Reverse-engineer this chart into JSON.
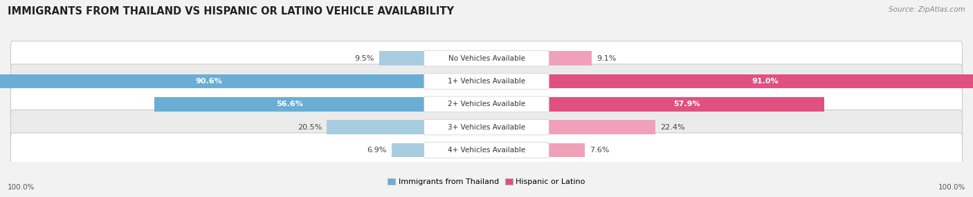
{
  "title": "IMMIGRANTS FROM THAILAND VS HISPANIC OR LATINO VEHICLE AVAILABILITY",
  "source": "Source: ZipAtlas.com",
  "categories": [
    "No Vehicles Available",
    "1+ Vehicles Available",
    "2+ Vehicles Available",
    "3+ Vehicles Available",
    "4+ Vehicles Available"
  ],
  "thailand_values": [
    9.5,
    90.6,
    56.6,
    20.5,
    6.9
  ],
  "hispanic_values": [
    9.1,
    91.0,
    57.9,
    22.4,
    7.6
  ],
  "max_value": 100.0,
  "thailand_color_large": "#6aaed6",
  "thailand_color_small": "#a8cce0",
  "hispanic_color_large": "#e05080",
  "hispanic_color_small": "#f0a0b8",
  "thailand_label": "Immigrants from Thailand",
  "hispanic_label": "Hispanic or Latino",
  "bg_color": "#f2f2f2",
  "row_bg_odd": "#ffffff",
  "row_bg_even": "#ebebeb",
  "title_fontsize": 10.5,
  "bar_label_fontsize": 8,
  "category_fontsize": 7.5,
  "legend_fontsize": 8,
  "footer_fontsize": 7.5,
  "source_fontsize": 7.5
}
